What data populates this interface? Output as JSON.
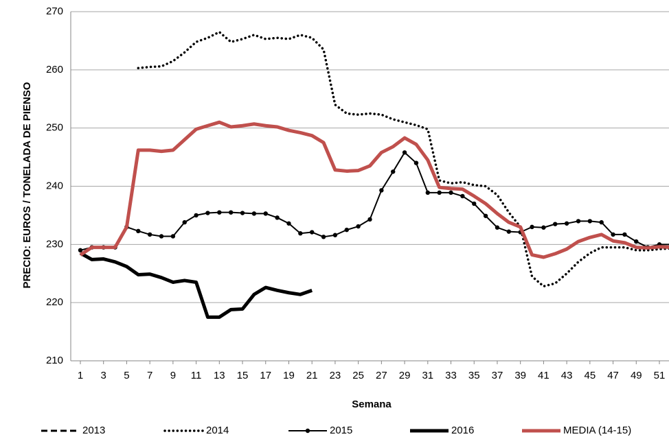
{
  "chart_data": {
    "type": "line",
    "y_label": "PRECIO: EUROS / TONELADA DE PIENSO",
    "x_label": "Semana",
    "x": [
      1,
      2,
      3,
      4,
      5,
      6,
      7,
      8,
      9,
      10,
      11,
      12,
      13,
      14,
      15,
      16,
      17,
      18,
      19,
      20,
      21,
      22,
      23,
      24,
      25,
      26,
      27,
      28,
      29,
      30,
      31,
      32,
      33,
      34,
      35,
      36,
      37,
      38,
      39,
      40,
      41,
      42,
      43,
      44,
      45,
      46,
      47,
      48,
      49,
      50,
      51,
      52
    ],
    "xlim": [
      0.17,
      51.83
    ],
    "xticks": [
      1,
      3,
      5,
      7,
      9,
      11,
      13,
      15,
      17,
      19,
      21,
      23,
      25,
      27,
      29,
      31,
      33,
      35,
      37,
      39,
      41,
      43,
      45,
      47,
      49,
      51
    ],
    "ylim": [
      210,
      270
    ],
    "yticks": [
      210,
      220,
      230,
      240,
      250,
      260,
      270
    ],
    "grid": true,
    "legend": "bottom",
    "series": [
      {
        "name": "2013",
        "color": "#000000",
        "style": "dashed",
        "marker": "none",
        "values": [
          null,
          null,
          null,
          null,
          null,
          null,
          null,
          null,
          null,
          null,
          null,
          null,
          null,
          null,
          null,
          null,
          null,
          null,
          null,
          null,
          null,
          null,
          null,
          null,
          null,
          null,
          null,
          null,
          null,
          null,
          null,
          null,
          null,
          null,
          null,
          null,
          null,
          null,
          null,
          null,
          null,
          null,
          null,
          null,
          null,
          null,
          null,
          null,
          null,
          null,
          null,
          null
        ]
      },
      {
        "name": "2014",
        "color": "#000000",
        "style": "dotted",
        "marker": "none",
        "values": [
          null,
          null,
          null,
          null,
          null,
          260.3,
          260.5,
          260.6,
          261.5,
          263,
          264.8,
          265.5,
          266.5,
          264.8,
          265.3,
          266,
          265.3,
          265.5,
          265.3,
          266,
          265.5,
          263.5,
          254,
          252.5,
          252.3,
          252.5,
          252.3,
          251.5,
          251,
          250.5,
          249.8,
          241,
          240.5,
          240.7,
          240.2,
          240,
          238.5,
          235.5,
          233,
          224.5,
          222.8,
          223.3,
          225,
          227,
          228.5,
          229.5,
          229.5,
          229.5,
          229,
          229,
          229.2,
          229.3
        ]
      },
      {
        "name": "2015",
        "color": "#000000",
        "style": "solid",
        "marker": "circle",
        "values": [
          229,
          229.5,
          229.5,
          229.5,
          233,
          232.3,
          231.7,
          231.4,
          231.4,
          233.8,
          235,
          235.4,
          235.5,
          235.5,
          235.4,
          235.3,
          235.3,
          234.6,
          233.6,
          231.9,
          232.1,
          231.3,
          231.6,
          232.5,
          233.1,
          234.3,
          239.3,
          242.5,
          245.8,
          244,
          238.9,
          238.9,
          238.9,
          238.3,
          237,
          234.9,
          232.9,
          232.2,
          232.1,
          233,
          232.9,
          233.5,
          233.6,
          234,
          234,
          233.8,
          231.7,
          231.7,
          230.5,
          229.5,
          230,
          230
        ]
      },
      {
        "name": "2016",
        "color": "#000000",
        "style": "thick",
        "marker": "none",
        "values": [
          228.5,
          227.4,
          227.5,
          227,
          226.2,
          224.8,
          224.9,
          224.3,
          223.5,
          223.8,
          223.5,
          217.5,
          217.5,
          218.8,
          218.9,
          221.4,
          222.6,
          222.1,
          221.7,
          221.4,
          222.1,
          null,
          null,
          null,
          null,
          null,
          null,
          null,
          null,
          null,
          null,
          null,
          null,
          null,
          null,
          null,
          null,
          null,
          null,
          null,
          null,
          null,
          null,
          null,
          null,
          null,
          null,
          null,
          null,
          null,
          null,
          null
        ]
      },
      {
        "name": "MEDIA (14-15)",
        "color": "#c0504d",
        "style": "thick",
        "marker": "none",
        "values": [
          228.2,
          229.5,
          229.5,
          229.5,
          233,
          246.2,
          246.2,
          246,
          246.2,
          248,
          249.8,
          250.4,
          251,
          250.2,
          250.4,
          250.7,
          250.4,
          250.2,
          249.6,
          249.2,
          248.7,
          247.5,
          242.8,
          242.6,
          242.7,
          243.5,
          245.8,
          246.8,
          248.3,
          247.2,
          244.5,
          239.8,
          239.6,
          239.5,
          238.3,
          237,
          235.3,
          233.8,
          233,
          228.2,
          227.8,
          228.4,
          229.2,
          230.5,
          231.2,
          231.7,
          230.6,
          230.3,
          229.5,
          229.4,
          229.6,
          229.5
        ]
      }
    ]
  }
}
